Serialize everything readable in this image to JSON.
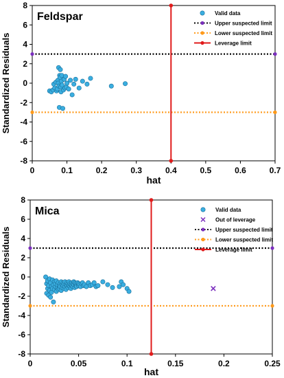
{
  "chart_data": [
    {
      "type": "scatter",
      "title": "Feldspar",
      "xlabel": "hat",
      "ylabel": "Standardized Residuals",
      "xlim": [
        0,
        0.7
      ],
      "ylim": [
        -8,
        8
      ],
      "xticks": [
        "0",
        "0.1",
        "0.2",
        "0.3",
        "0.4",
        "0.5",
        "0.6",
        "0.7"
      ],
      "yticks": [
        "8",
        "6",
        "4",
        "2",
        "0",
        "-2",
        "-4",
        "-6",
        "-8"
      ],
      "grid": false,
      "legend_position": "top-right",
      "legend": [
        "Valid data",
        "Upper suspected limit",
        "Lower suspected limit",
        "Leverage limit"
      ],
      "series": [
        {
          "name": "Valid data",
          "kind": "points",
          "color": "#3aaee0",
          "edge_color": "#1a6f9a",
          "points": [
            [
              0.05,
              -0.8
            ],
            [
              0.055,
              -0.9
            ],
            [
              0.06,
              -0.7
            ],
            [
              0.062,
              -0.1
            ],
            [
              0.065,
              -0.5
            ],
            [
              0.068,
              0.1
            ],
            [
              0.07,
              -0.8
            ],
            [
              0.072,
              -0.6
            ],
            [
              0.074,
              0.3
            ],
            [
              0.075,
              0.0
            ],
            [
              0.076,
              1.6
            ],
            [
              0.077,
              -0.3
            ],
            [
              0.078,
              -2.5
            ],
            [
              0.079,
              0.8
            ],
            [
              0.08,
              0.6
            ],
            [
              0.081,
              1.4
            ],
            [
              0.082,
              -0.4
            ],
            [
              0.083,
              -0.9
            ],
            [
              0.084,
              0.2
            ],
            [
              0.085,
              0.8
            ],
            [
              0.086,
              -0.2
            ],
            [
              0.088,
              -2.6
            ],
            [
              0.09,
              -0.7
            ],
            [
              0.092,
              0.4
            ],
            [
              0.094,
              -0.5
            ],
            [
              0.096,
              0.7
            ],
            [
              0.098,
              -0.4
            ],
            [
              0.1,
              0.0
            ],
            [
              0.105,
              -0.6
            ],
            [
              0.11,
              0.3
            ],
            [
              0.115,
              -1.2
            ],
            [
              0.12,
              -0.1
            ],
            [
              0.125,
              0.4
            ],
            [
              0.135,
              -0.5
            ],
            [
              0.145,
              0.2
            ],
            [
              0.158,
              -0.1
            ],
            [
              0.168,
              0.5
            ],
            [
              0.228,
              -0.3
            ],
            [
              0.268,
              -0.05
            ]
          ]
        },
        {
          "name": "Upper suspected limit",
          "kind": "hline",
          "y": 3,
          "color": "#000000",
          "marker_color": "#7b2fbe",
          "dash": "2,2.5"
        },
        {
          "name": "Lower suspected limit",
          "kind": "hline",
          "y": -3,
          "color": "#ff9a1a",
          "marker_color": "#ff9a1a",
          "dash": "2,2.5"
        },
        {
          "name": "Leverage limit",
          "kind": "vline",
          "x": 0.4,
          "color": "#e01b1b",
          "marker_color": "#e01b1b",
          "dash": ""
        }
      ]
    },
    {
      "type": "scatter",
      "title": "Mica",
      "xlabel": "hat",
      "ylabel": "Standardized Residuals",
      "xlim": [
        0,
        0.25
      ],
      "ylim": [
        -8,
        8
      ],
      "xticks": [
        "0",
        "0.05",
        "0.1",
        "0.15",
        "0.2",
        "0.25"
      ],
      "yticks": [
        "8",
        "6",
        "4",
        "2",
        "0",
        "-2",
        "-4",
        "-6",
        "-8"
      ],
      "grid": false,
      "legend_position": "top-right",
      "legend": [
        "Valid data",
        "Out of leverage",
        "Upper suspected limit",
        "Lower suspected limit",
        "Leverage limit"
      ],
      "series": [
        {
          "name": "Valid data",
          "kind": "points",
          "color": "#3aaee0",
          "edge_color": "#1a6f9a",
          "points": [
            [
              0.016,
              0.0
            ],
            [
              0.017,
              -0.7
            ],
            [
              0.017,
              -1.7
            ],
            [
              0.018,
              -1.2
            ],
            [
              0.018,
              -0.4
            ],
            [
              0.019,
              -1.9
            ],
            [
              0.019,
              -0.9
            ],
            [
              0.02,
              -1.4
            ],
            [
              0.02,
              -0.2
            ],
            [
              0.021,
              -2.1
            ],
            [
              0.021,
              -0.6
            ],
            [
              0.022,
              -1.0
            ],
            [
              0.022,
              -1.6
            ],
            [
              0.023,
              -0.3
            ],
            [
              0.023,
              -1.2
            ],
            [
              0.024,
              -0.8
            ],
            [
              0.024,
              -2.6
            ],
            [
              0.025,
              -0.5
            ],
            [
              0.025,
              -1.3
            ],
            [
              0.026,
              -1.0
            ],
            [
              0.026,
              -0.7
            ],
            [
              0.027,
              -1.5
            ],
            [
              0.027,
              -0.4
            ],
            [
              0.028,
              -1.1
            ],
            [
              0.028,
              -0.8
            ],
            [
              0.029,
              -1.3
            ],
            [
              0.029,
              -0.6
            ],
            [
              0.03,
              -0.9
            ],
            [
              0.03,
              -1.2
            ],
            [
              0.031,
              -0.7
            ],
            [
              0.031,
              -1.0
            ],
            [
              0.032,
              -0.5
            ],
            [
              0.032,
              -1.4
            ],
            [
              0.033,
              -0.8
            ],
            [
              0.033,
              -1.1
            ],
            [
              0.034,
              -0.6
            ],
            [
              0.034,
              -0.9
            ],
            [
              0.035,
              -1.2
            ],
            [
              0.035,
              -0.7
            ],
            [
              0.036,
              -1.0
            ],
            [
              0.036,
              -0.5
            ],
            [
              0.037,
              -0.8
            ],
            [
              0.037,
              -1.3
            ],
            [
              0.038,
              -0.9
            ],
            [
              0.038,
              -0.6
            ],
            [
              0.039,
              -1.1
            ],
            [
              0.039,
              -0.7
            ],
            [
              0.04,
              -0.9
            ],
            [
              0.04,
              -0.5
            ],
            [
              0.041,
              -1.0
            ],
            [
              0.041,
              -0.7
            ],
            [
              0.042,
              -0.8
            ],
            [
              0.042,
              -1.2
            ],
            [
              0.043,
              -0.6
            ],
            [
              0.043,
              -0.9
            ],
            [
              0.044,
              -1.0
            ],
            [
              0.044,
              -0.7
            ],
            [
              0.045,
              -0.8
            ],
            [
              0.045,
              -0.5
            ],
            [
              0.046,
              -1.1
            ],
            [
              0.046,
              -0.6
            ],
            [
              0.047,
              -0.9
            ],
            [
              0.047,
              -0.7
            ],
            [
              0.048,
              -0.8
            ],
            [
              0.048,
              -1.0
            ],
            [
              0.049,
              -0.6
            ],
            [
              0.05,
              -0.9
            ],
            [
              0.05,
              -0.7
            ],
            [
              0.051,
              -0.8
            ],
            [
              0.052,
              -1.0
            ],
            [
              0.053,
              -0.7
            ],
            [
              0.054,
              -0.6
            ],
            [
              0.055,
              -0.9
            ],
            [
              0.056,
              -0.8
            ],
            [
              0.058,
              -1.0
            ],
            [
              0.06,
              -0.6
            ],
            [
              0.062,
              -0.9
            ],
            [
              0.064,
              -0.8
            ],
            [
              0.066,
              -0.6
            ],
            [
              0.068,
              -1.0
            ],
            [
              0.07,
              -0.9
            ],
            [
              0.075,
              -0.5
            ],
            [
              0.08,
              -0.8
            ],
            [
              0.085,
              -1.1
            ],
            [
              0.092,
              -1.0
            ],
            [
              0.094,
              -0.5
            ],
            [
              0.096,
              -0.8
            ],
            [
              0.1,
              -1.2
            ],
            [
              0.102,
              -1.5
            ]
          ]
        },
        {
          "name": "Out of leverage",
          "kind": "crosses",
          "color": "#7b2fbe",
          "points": [
            [
              0.189,
              -1.2
            ]
          ]
        },
        {
          "name": "Upper suspected limit",
          "kind": "hline",
          "y": 3,
          "color": "#000000",
          "marker_color": "#7b2fbe",
          "dash": "2,2.5"
        },
        {
          "name": "Lower suspected limit",
          "kind": "hline",
          "y": -3,
          "color": "#ff9a1a",
          "marker_color": "#ff9a1a",
          "dash": "2,2.5"
        },
        {
          "name": "Leverage limit",
          "kind": "vline",
          "x": 0.125,
          "color": "#e01b1b",
          "marker_color": "#e01b1b",
          "dash": ""
        }
      ]
    }
  ]
}
